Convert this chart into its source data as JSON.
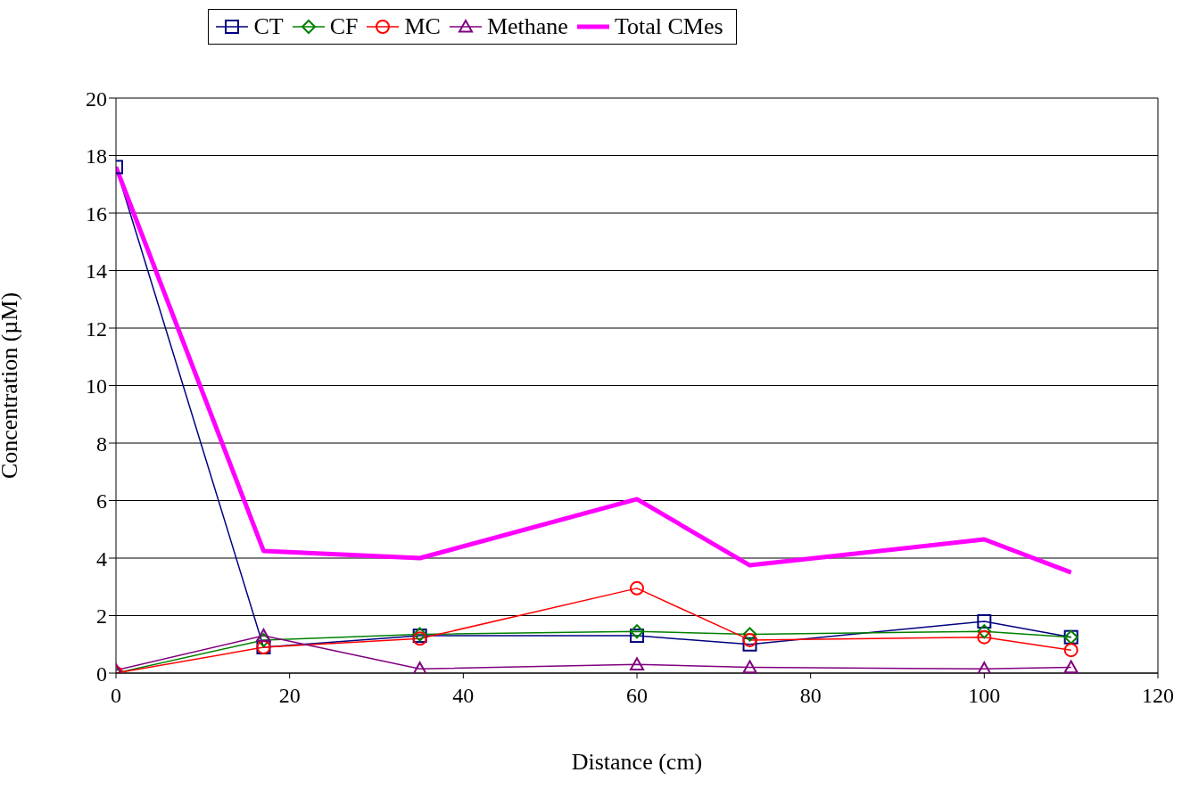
{
  "chart_data": {
    "type": "line",
    "xlabel": "Distance (cm)",
    "ylabel": "Concentration (µM)",
    "x": [
      0,
      17,
      35,
      60,
      73,
      100,
      110
    ],
    "series": [
      {
        "name": "CT",
        "color": "#000080",
        "marker": "square",
        "values": [
          17.6,
          0.9,
          1.3,
          1.3,
          1.0,
          1.8,
          1.25
        ]
      },
      {
        "name": "CF",
        "color": "#008000",
        "marker": "diamond",
        "values": [
          0,
          1.15,
          1.35,
          1.45,
          1.35,
          1.45,
          1.25
        ]
      },
      {
        "name": "MC",
        "color": "#ff0000",
        "marker": "circle",
        "values": [
          0,
          0.9,
          1.2,
          2.95,
          1.15,
          1.25,
          0.8
        ]
      },
      {
        "name": "Methane",
        "color": "#800080",
        "marker": "triangle",
        "values": [
          0.1,
          1.3,
          0.15,
          0.3,
          0.2,
          0.15,
          0.2
        ]
      },
      {
        "name": "Total CMes",
        "color": "#ff00ff",
        "marker": "none",
        "values": [
          17.6,
          4.25,
          4.0,
          6.05,
          3.75,
          4.65,
          3.5
        ]
      }
    ],
    "xlim": [
      0,
      120
    ],
    "xticks": [
      0,
      20,
      40,
      60,
      80,
      100,
      120
    ],
    "ylim": [
      0,
      20
    ],
    "yticks": [
      0,
      2,
      4,
      6,
      8,
      10,
      12,
      14,
      16,
      18,
      20
    ],
    "grid": "y",
    "legend": "top"
  }
}
